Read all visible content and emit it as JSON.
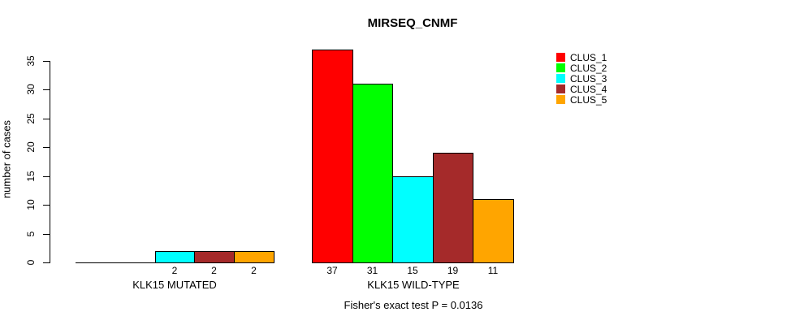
{
  "chart_data": {
    "type": "bar",
    "title": "MIRSEQ_CNMF",
    "ylabel": "number of cases",
    "ylim": [
      0,
      35
    ],
    "yticks": [
      0,
      5,
      10,
      15,
      20,
      25,
      30,
      35
    ],
    "grid": false,
    "legend_position": "right",
    "series": [
      {
        "name": "CLUS_1",
        "color": "#FF0000"
      },
      {
        "name": "CLUS_2",
        "color": "#00FF00"
      },
      {
        "name": "CLUS_3",
        "color": "#00FFFF"
      },
      {
        "name": "CLUS_4",
        "color": "#A52A2A"
      },
      {
        "name": "CLUS_5",
        "color": "#FFA500"
      }
    ],
    "groups": [
      {
        "label": "KLK15 MUTATED",
        "values": [
          0,
          0,
          2,
          2,
          2
        ],
        "bar_labels": [
          "",
          "",
          "2",
          "2",
          "2"
        ]
      },
      {
        "label": "KLK15 WILD-TYPE",
        "values": [
          37,
          31,
          15,
          19,
          11
        ],
        "bar_labels": [
          "37",
          "31",
          "15",
          "19",
          "11"
        ]
      }
    ],
    "annotation": "Fisher's exact test P = 0.0136",
    "axis_color": "#000000"
  }
}
